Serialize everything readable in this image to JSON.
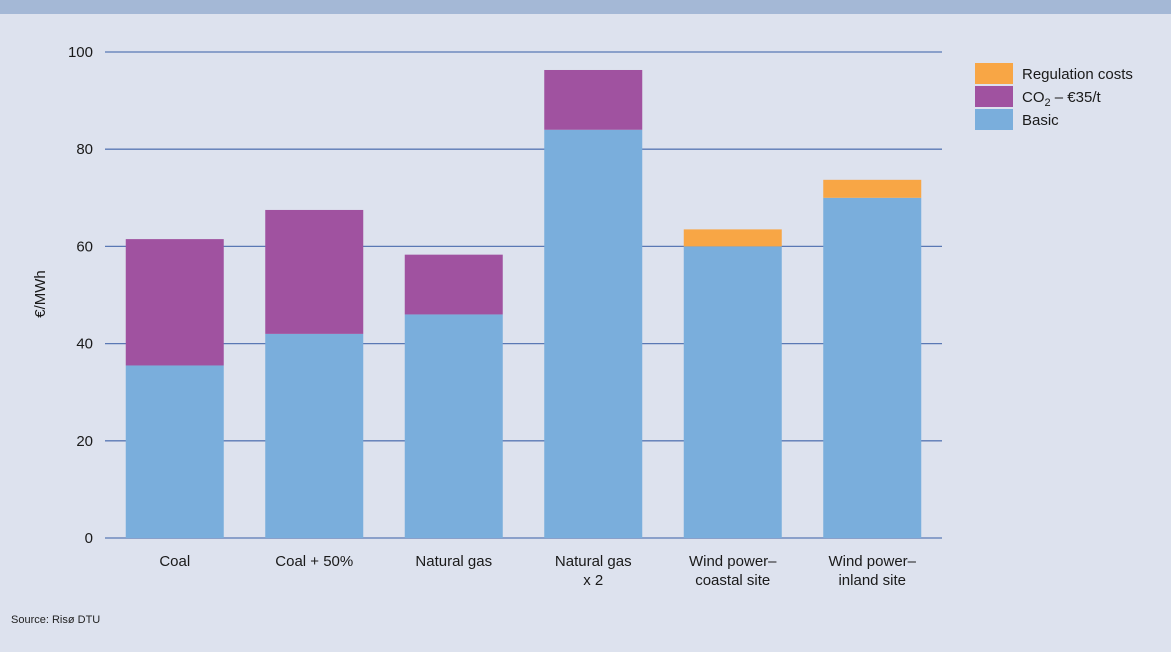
{
  "chart_data": {
    "type": "bar",
    "stacked": true,
    "ylabel": "€/MWh",
    "ylim": [
      0,
      100
    ],
    "yticks": [
      0,
      20,
      40,
      60,
      80,
      100
    ],
    "grid": true,
    "legend_position": "right",
    "categories": [
      [
        "Coal"
      ],
      [
        "Coal + 50%"
      ],
      [
        "Natural gas"
      ],
      [
        "Natural gas",
        "x 2"
      ],
      [
        "Wind power–",
        "coastal site"
      ],
      [
        "Wind power–",
        "inland site"
      ]
    ],
    "series": [
      {
        "name": "Basic",
        "color": "#7aaedc",
        "values": [
          35.5,
          42,
          46,
          84,
          60,
          70
        ]
      },
      {
        "name": "CO₂ – €35/t",
        "name_base": "CO",
        "name_sub": "2",
        "name_rest": " – €35/t",
        "color": "#a052a0",
        "values": [
          26,
          25.5,
          12.3,
          12.3,
          0,
          0
        ]
      },
      {
        "name": "Regulation costs",
        "color": "#f8a645",
        "values": [
          0,
          0,
          0,
          0,
          3.5,
          3.7
        ]
      }
    ]
  },
  "source": "Source: Risø DTU"
}
